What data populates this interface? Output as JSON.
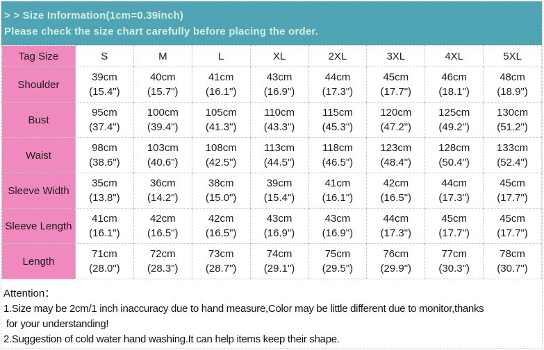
{
  "banner": {
    "title": "> > Size Information(1cm=0.39inch)",
    "subtitle": "Please check the size chart carefully before placing the order."
  },
  "table": {
    "header": [
      "Tag Size",
      "S",
      "M",
      "L",
      "XL",
      "2XL",
      "3XL",
      "4XL",
      "5XL"
    ],
    "rows": [
      {
        "label": "Shoulder",
        "values": [
          {
            "cm": "39cm",
            "inch": "(15.4\")"
          },
          {
            "cm": "40cm",
            "inch": "(15.7\")"
          },
          {
            "cm": "41cm",
            "inch": "(16.1\")"
          },
          {
            "cm": "43cm",
            "inch": "(16.9\")"
          },
          {
            "cm": "44cm",
            "inch": "(17.3\")"
          },
          {
            "cm": "45cm",
            "inch": "(17.7\")"
          },
          {
            "cm": "46cm",
            "inch": "(18.1\")"
          },
          {
            "cm": "48cm",
            "inch": "(18.9\")"
          }
        ]
      },
      {
        "label": "Bust",
        "values": [
          {
            "cm": "95cm",
            "inch": "(37.4\")"
          },
          {
            "cm": "100cm",
            "inch": "(39.4\")"
          },
          {
            "cm": "105cm",
            "inch": "(41.3\")"
          },
          {
            "cm": "110cm",
            "inch": "(43.3\")"
          },
          {
            "cm": "115cm",
            "inch": "(45.3\")"
          },
          {
            "cm": "120cm",
            "inch": "(47.2\")"
          },
          {
            "cm": "125cm",
            "inch": "(49.2\")"
          },
          {
            "cm": "130cm",
            "inch": "(51.2\")"
          }
        ]
      },
      {
        "label": "Waist",
        "values": [
          {
            "cm": "98cm",
            "inch": "(38.6\")"
          },
          {
            "cm": "103cm",
            "inch": "(40.6\")"
          },
          {
            "cm": "108cm",
            "inch": "(42.5\")"
          },
          {
            "cm": "113cm",
            "inch": "(44.5\")"
          },
          {
            "cm": "118cm",
            "inch": "(46.5\")"
          },
          {
            "cm": "123cm",
            "inch": "(48.4\")"
          },
          {
            "cm": "128cm",
            "inch": "(50.4\")"
          },
          {
            "cm": "133cm",
            "inch": "(52.4\")"
          }
        ]
      },
      {
        "label": "Sleeve Width",
        "values": [
          {
            "cm": "35cm",
            "inch": "(13.8\")"
          },
          {
            "cm": "36cm",
            "inch": "(14.2\")"
          },
          {
            "cm": "38cm",
            "inch": "(15.0\")"
          },
          {
            "cm": "39cm",
            "inch": "(15.4\")"
          },
          {
            "cm": "41cm",
            "inch": "(16.1\")"
          },
          {
            "cm": "42cm",
            "inch": "(16.5\")"
          },
          {
            "cm": "44cm",
            "inch": "(17.3\")"
          },
          {
            "cm": "45cm",
            "inch": "(17.7\")"
          }
        ]
      },
      {
        "label": "Sleeve Length",
        "values": [
          {
            "cm": "41cm",
            "inch": "(16.1\")"
          },
          {
            "cm": "42cm",
            "inch": "(16.5\")"
          },
          {
            "cm": "42cm",
            "inch": "(16.5\")"
          },
          {
            "cm": "43cm",
            "inch": "(16.9\")"
          },
          {
            "cm": "43cm",
            "inch": "(16.9\")"
          },
          {
            "cm": "44cm",
            "inch": "(17.3\")"
          },
          {
            "cm": "45cm",
            "inch": "(17.7\")"
          },
          {
            "cm": "45cm",
            "inch": "(17.7\")"
          }
        ]
      },
      {
        "label": "Length",
        "values": [
          {
            "cm": "71cm",
            "inch": "(28.0\")"
          },
          {
            "cm": "72cm",
            "inch": "(28.3\")"
          },
          {
            "cm": "73cm",
            "inch": "(28.7\")"
          },
          {
            "cm": "74cm",
            "inch": "(29.1\")"
          },
          {
            "cm": "75cm",
            "inch": "(29.5\")"
          },
          {
            "cm": "76cm",
            "inch": "(29.9\")"
          },
          {
            "cm": "77cm",
            "inch": "(30.3\")"
          },
          {
            "cm": "78cm",
            "inch": "(30.7\")"
          }
        ]
      }
    ]
  },
  "notes": {
    "title": "Attention：",
    "lines": [
      "1.Size may be 2cm/1 inch inaccuracy due to hand measure,Color may be little different due to monitor,thanks",
      " for your understanding!",
      "2.Suggestion of cold water hand washing.It can help items keep their shape."
    ]
  },
  "colors": {
    "banner_background": "#4FA5B6",
    "banner_text": "#D3EEDB",
    "label_cell_background": "#F08ABE",
    "cell_text": "#1c1c1c",
    "grid_line": "#c9c9c9",
    "table_background": "#ffffff"
  }
}
